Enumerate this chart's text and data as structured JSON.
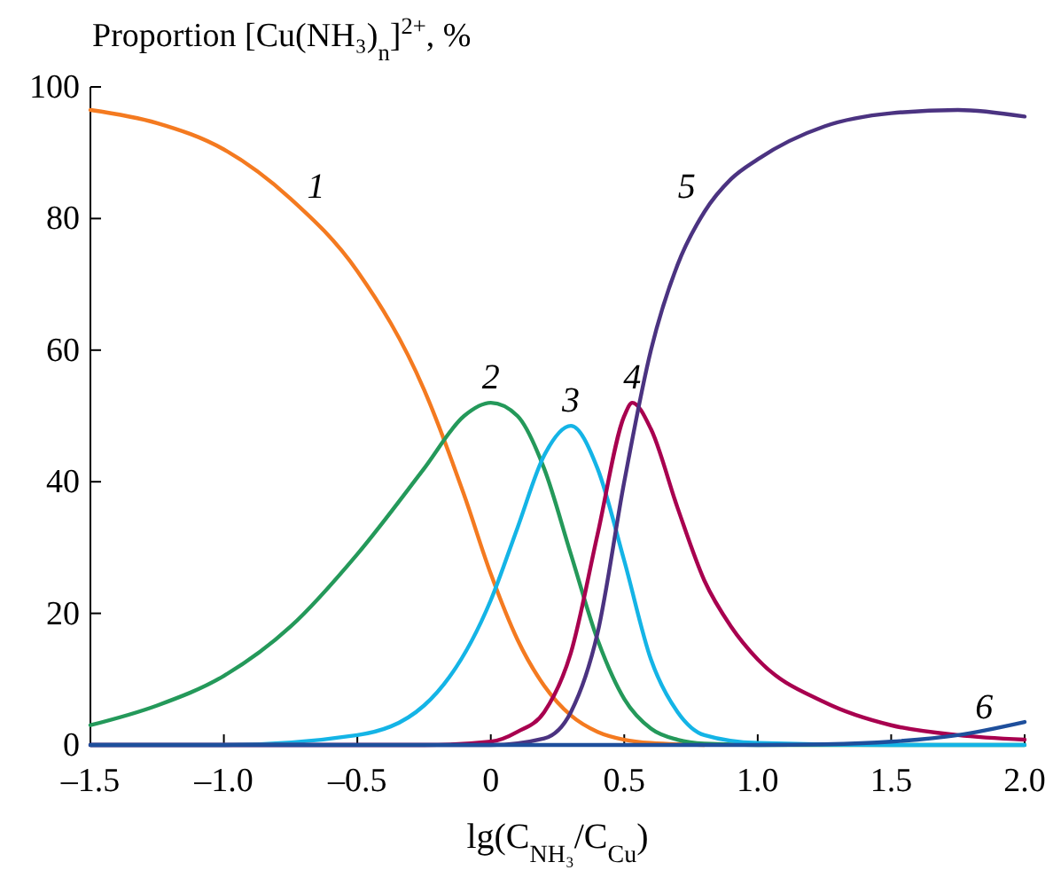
{
  "chart_data": {
    "type": "line",
    "ylabel": "Proportion [Cu(NH₃)$_{n}$]$^{2+}$, %",
    "xlabel": "lg(C$_{NH₃}$/C$_{Cu}$)",
    "xlim": [
      -1.5,
      2.0
    ],
    "xticks": [
      {
        "value": -1.5,
        "label": "–1.5"
      },
      {
        "value": -1.0,
        "label": "–1.0"
      },
      {
        "value": -0.5,
        "label": "–0.5"
      },
      {
        "value": 0,
        "label": "0"
      },
      {
        "value": 0.5,
        "label": "0.5"
      },
      {
        "value": 1.0,
        "label": "1.0"
      },
      {
        "value": 1.5,
        "label": "1.5"
      },
      {
        "value": 2.0,
        "label": "2.0"
      }
    ],
    "ylim": [
      0,
      100
    ],
    "yticks": [
      0,
      20,
      40,
      60,
      80,
      100
    ],
    "grid": false,
    "marker": "none",
    "line_style": "solid",
    "series": [
      {
        "name": "1",
        "color": "#f47a20",
        "x": [
          -1.5,
          -1.25,
          -1.0,
          -0.75,
          -0.5,
          -0.25,
          -0.1,
          0,
          0.1,
          0.2,
          0.3,
          0.4,
          0.5,
          0.6,
          0.8
        ],
        "values": [
          96.5,
          94.5,
          90.5,
          83,
          72,
          54,
          38,
          26,
          16,
          9,
          4.5,
          2,
          0.8,
          0.3,
          0
        ]
      },
      {
        "name": "2",
        "color": "#24995a",
        "x": [
          -1.5,
          -1.25,
          -1.0,
          -0.75,
          -0.5,
          -0.25,
          -0.1,
          0,
          0.1,
          0.2,
          0.3,
          0.4,
          0.5,
          0.6,
          0.7,
          0.8,
          1.0,
          1.5,
          2.0
        ],
        "values": [
          3,
          6,
          10.5,
          18,
          29,
          42,
          50,
          52,
          50,
          42,
          29,
          16,
          7,
          2.5,
          0.8,
          0.2,
          0,
          0,
          0
        ]
      },
      {
        "name": "3",
        "color": "#14b4e6",
        "x": [
          -1.5,
          -1.0,
          -0.5,
          -0.25,
          0,
          0.1,
          0.2,
          0.3,
          0.4,
          0.5,
          0.6,
          0.7,
          0.8,
          1.0,
          1.5,
          2.0
        ],
        "values": [
          0,
          0,
          1.5,
          6,
          22,
          33,
          44,
          48.5,
          42,
          28,
          13,
          5,
          1.5,
          0.3,
          0,
          0
        ]
      },
      {
        "name": "4",
        "color": "#a8004f",
        "x": [
          -1.5,
          -0.25,
          0,
          0.1,
          0.2,
          0.3,
          0.4,
          0.5,
          0.53,
          0.6,
          0.7,
          0.8,
          0.9,
          1.0,
          1.25,
          1.5,
          1.75,
          2.0
        ],
        "values": [
          0,
          0,
          0.5,
          2,
          5,
          14,
          32,
          50,
          52,
          48,
          36,
          25,
          18,
          13,
          6.5,
          3,
          1.5,
          0.8
        ]
      },
      {
        "name": "5",
        "color": "#4b3381",
        "x": [
          -1.5,
          0,
          0.2,
          0.3,
          0.4,
          0.5,
          0.6,
          0.7,
          0.8,
          0.9,
          1.0,
          1.25,
          1.5,
          1.75,
          2.0
        ],
        "values": [
          0,
          0,
          1,
          5,
          17,
          40,
          60,
          73,
          81,
          86,
          89,
          94,
          96,
          96.5,
          95.5
        ]
      },
      {
        "name": "6",
        "color": "#1e4f9c",
        "x": [
          -1.5,
          1.0,
          1.25,
          1.5,
          1.75,
          2.0
        ],
        "values": [
          0,
          0,
          0.1,
          0.5,
          1.5,
          3.5
        ]
      }
    ]
  }
}
